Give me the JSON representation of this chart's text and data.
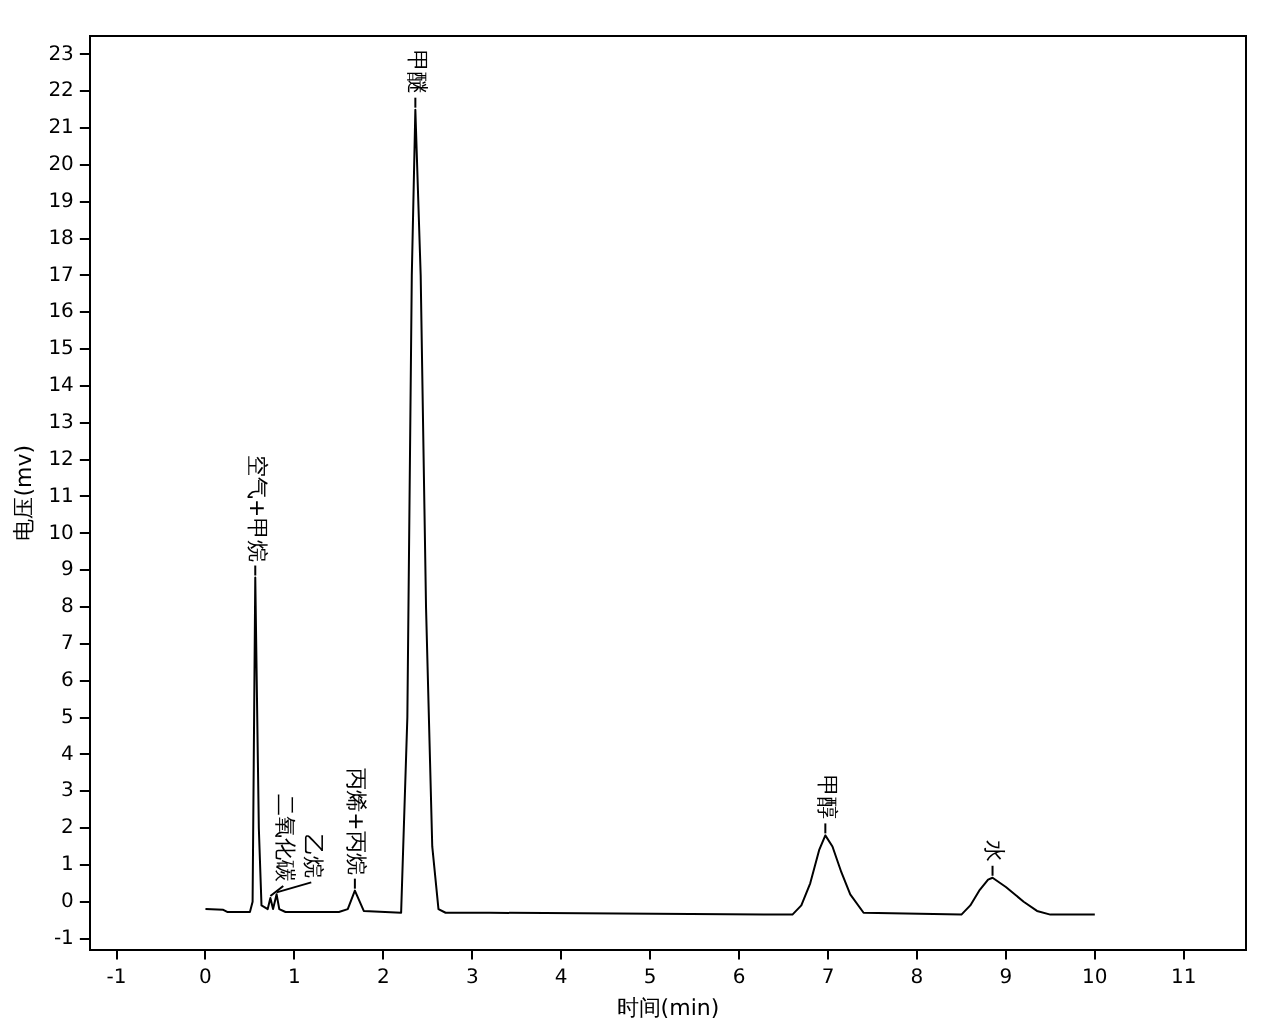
{
  "chart_data": {
    "type": "line",
    "xlabel": "时间(min)",
    "ylabel": "电压(mv)",
    "x": [
      0,
      0.2,
      0.25,
      0.5,
      0.53,
      0.56,
      0.6,
      0.63,
      0.7,
      0.73,
      0.76,
      0.8,
      0.83,
      0.9,
      1.5,
      1.6,
      1.68,
      1.78,
      2.2,
      2.27,
      2.32,
      2.36,
      2.42,
      2.48,
      2.55,
      2.62,
      2.7,
      3.2,
      6.6,
      6.7,
      6.8,
      6.9,
      6.97,
      7.05,
      7.15,
      7.25,
      7.4,
      8.5,
      8.6,
      8.7,
      8.8,
      8.85,
      9.0,
      9.2,
      9.35,
      9.5,
      10
    ],
    "series": [
      {
        "color": "#000000",
        "values": [
          -0.2,
          -0.22,
          -0.28,
          -0.28,
          0,
          8.8,
          2,
          -0.1,
          -0.2,
          0.1,
          -0.2,
          0.2,
          -0.2,
          -0.28,
          -0.28,
          -0.2,
          0.3,
          -0.25,
          -0.3,
          5,
          17,
          21.5,
          17,
          8,
          1.5,
          -0.2,
          -0.3,
          -0.3,
          -0.35,
          -0.1,
          0.5,
          1.4,
          1.8,
          1.5,
          0.8,
          0.2,
          -0.3,
          -0.35,
          -0.1,
          0.3,
          0.6,
          0.65,
          0.4,
          0,
          -0.25,
          -0.35,
          -0.35
        ]
      }
    ],
    "xlim": [
      -1.3,
      11.7
    ],
    "xticks": [
      -1,
      0,
      1,
      2,
      3,
      4,
      5,
      6,
      7,
      8,
      9,
      10,
      11
    ],
    "ylim": [
      -1.3,
      23.5
    ],
    "yticks": [
      -1,
      0,
      1,
      2,
      3,
      4,
      5,
      6,
      7,
      8,
      9,
      10,
      11,
      12,
      13,
      14,
      15,
      16,
      17,
      18,
      19,
      20,
      21,
      22,
      23
    ],
    "grid": false,
    "legend": false,
    "marker": "none",
    "line_style": "solid",
    "annotations": [
      {
        "text": "空气+甲烷",
        "x": 0.56,
        "y": 8.8
      },
      {
        "text": "二氧化碳",
        "x": 0.73,
        "y": 0.1
      },
      {
        "text": "乙烷",
        "x": 0.8,
        "y": 0.2
      },
      {
        "text": "丙烯+丙烷",
        "x": 1.68,
        "y": 0.3
      },
      {
        "text": "甲醚",
        "x": 2.36,
        "y": 21.5
      },
      {
        "text": "甲醇",
        "x": 6.97,
        "y": 1.8
      },
      {
        "text": "水",
        "x": 8.85,
        "y": 0.65
      }
    ]
  }
}
